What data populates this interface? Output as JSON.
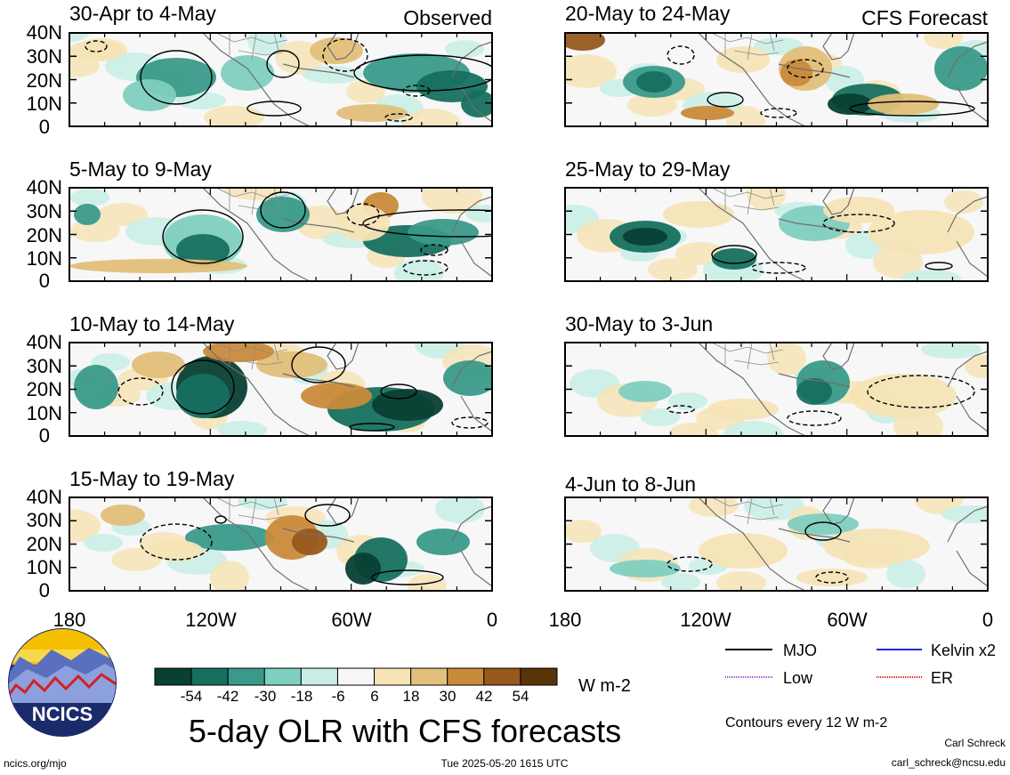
{
  "figure": {
    "title": "5-day OLR with CFS forecasts",
    "observed_label": "Observed",
    "forecast_label": "CFS Forecast",
    "contour_note": "Contours every 12 W m-2",
    "author": "Carl Schreck",
    "email": "carl_schreck@ncsu.edu",
    "website": "ncics.org/mjo",
    "timestamp": "Tue 2025-05-20 1615 UTC",
    "logo_text": "NCICS"
  },
  "axes": {
    "y_ticks": [
      "40N",
      "30N",
      "20N",
      "10N",
      "0"
    ],
    "x_ticks": [
      "180",
      "120W",
      "60W",
      "0"
    ]
  },
  "panels": {
    "left": [
      {
        "title": "30-Apr to 4-May"
      },
      {
        "title": "5-May to 9-May"
      },
      {
        "title": "10-May to 14-May"
      },
      {
        "title": "15-May to 19-May"
      }
    ],
    "right": [
      {
        "title": "20-May to 24-May"
      },
      {
        "title": "25-May to 29-May"
      },
      {
        "title": "30-May to 3-Jun"
      },
      {
        "title": "4-Jun to 8-Jun"
      }
    ]
  },
  "colorbar": {
    "unit": "W m-2",
    "labels": [
      "-54",
      "-42",
      "-30",
      "-18",
      "-6",
      "6",
      "18",
      "30",
      "42",
      "54"
    ],
    "colors": [
      "#0a3f33",
      "#17705f",
      "#3a9a8a",
      "#7fcfbf",
      "#c8eee6",
      "#f7f7f7",
      "#f6e4b6",
      "#e2bf7a",
      "#c98a3a",
      "#97591d",
      "#5a3409"
    ]
  },
  "legend": [
    {
      "label": "MJO",
      "color": "#000000"
    },
    {
      "label": "Kelvin x2",
      "color": "#1f2bd6"
    },
    {
      "label": "Low",
      "color": "#9b4fd6"
    },
    {
      "label": "ER",
      "color": "#d62020"
    }
  ]
}
